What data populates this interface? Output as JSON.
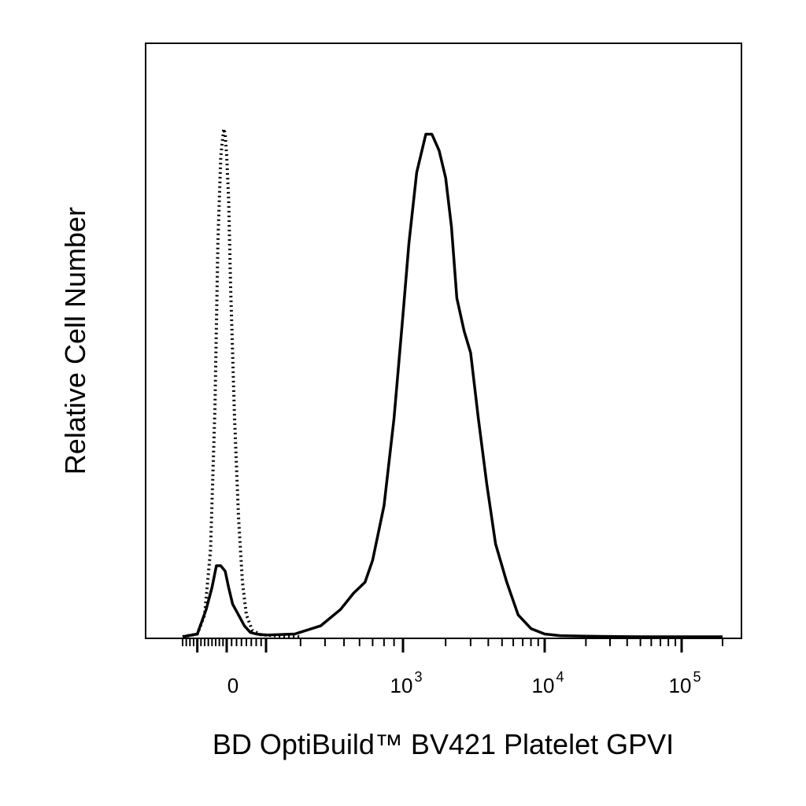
{
  "chart_data": {
    "type": "line",
    "title": "",
    "xlabel": "BD OptiBuild™ BV421 Platelet GPVI",
    "ylabel": "Relative Cell Number",
    "x_scale": "biexponential",
    "xlim": [
      -300,
      200000
    ],
    "ylim": [
      0,
      1.0
    ],
    "grid": false,
    "x_ticks": [
      {
        "value": 0,
        "base": "0",
        "exp": ""
      },
      {
        "value": 1000,
        "base": "10",
        "exp": "3"
      },
      {
        "value": 10000,
        "base": "10",
        "exp": "4"
      },
      {
        "value": 100000,
        "base": "10",
        "exp": "5"
      }
    ],
    "series": [
      {
        "style": "dotted",
        "x": [
          -300,
          -200,
          -150,
          -110,
          -80,
          -60,
          -40,
          -20,
          -10,
          0,
          10,
          20,
          40,
          60,
          80,
          100,
          130,
          170,
          220,
          300
        ],
        "y": [
          0,
          0.005,
          0.04,
          0.16,
          0.42,
          0.72,
          0.88,
          0.93,
          0.92,
          0.88,
          0.8,
          0.64,
          0.4,
          0.22,
          0.1,
          0.04,
          0.012,
          0.004,
          0.002,
          0
        ]
      },
      {
        "style": "solid",
        "x": [
          -300,
          -200,
          -140,
          -100,
          -70,
          -40,
          -10,
          10,
          30,
          60,
          90,
          120,
          150,
          200,
          280,
          380,
          480,
          560,
          640,
          700,
          800,
          900,
          1000,
          1100,
          1250,
          1450,
          1600,
          1800,
          2000,
          2200,
          2400,
          2700,
          3000,
          3400,
          3900,
          4500,
          5400,
          6500,
          8000,
          10000,
          13000,
          20000,
          50000,
          100000,
          200000
        ],
        "y": [
          0,
          0.005,
          0.05,
          0.09,
          0.13,
          0.13,
          0.12,
          0.09,
          0.06,
          0.04,
          0.02,
          0.008,
          0.005,
          0.003,
          0.005,
          0.02,
          0.05,
          0.08,
          0.1,
          0.14,
          0.24,
          0.4,
          0.59,
          0.72,
          0.85,
          0.92,
          0.92,
          0.89,
          0.84,
          0.75,
          0.62,
          0.56,
          0.52,
          0.4,
          0.28,
          0.17,
          0.1,
          0.04,
          0.015,
          0.005,
          0.002,
          0.001,
          0,
          0,
          0
        ]
      }
    ]
  }
}
